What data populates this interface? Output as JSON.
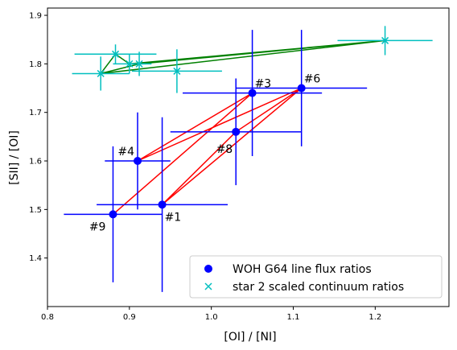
{
  "chart_data": {
    "type": "scatter",
    "title": "",
    "xlabel": "[OI] / [NI]",
    "ylabel": "[SII] / [OI]",
    "xlim": [
      0.8,
      1.29
    ],
    "ylim": [
      1.3,
      1.915
    ],
    "xticks": [
      0.8,
      0.9,
      1.0,
      1.1,
      1.2
    ],
    "xtick_labels": [
      "0.8",
      "0.9",
      "1.0",
      "1.1",
      "1.2"
    ],
    "yticks": [
      1.4,
      1.5,
      1.6,
      1.7,
      1.8,
      1.9
    ],
    "ytick_labels": [
      "1.4",
      "1.5",
      "1.6",
      "1.7",
      "1.8",
      "1.9"
    ],
    "grid": false,
    "legend": {
      "placement": "lower right"
    },
    "series": [
      {
        "name": "WOH G64 line flux ratios",
        "marker": "filled-circle",
        "color": "#0000ff",
        "points": [
          {
            "label": "#1",
            "x": 0.94,
            "y": 1.51,
            "xerr": 0.08,
            "yerr": 0.18
          },
          {
            "label": "#3",
            "x": 1.05,
            "y": 1.74,
            "xerr": 0.085,
            "yerr": 0.13
          },
          {
            "label": "#4",
            "x": 0.91,
            "y": 1.6,
            "xerr": 0.04,
            "yerr": 0.1
          },
          {
            "label": "#6",
            "x": 1.11,
            "y": 1.75,
            "xerr": 0.08,
            "yerr": 0.12
          },
          {
            "label": "#8",
            "x": 1.03,
            "y": 1.66,
            "xerr": 0.08,
            "yerr": 0.11
          },
          {
            "label": "#9",
            "x": 0.88,
            "y": 1.49,
            "xerr": 0.06,
            "yerr": 0.14
          }
        ]
      },
      {
        "name": "star 2 scaled continuum ratios",
        "marker": "x",
        "color": "#00bfbf",
        "points": [
          {
            "x": 0.865,
            "y": 1.78,
            "xerr": 0.035,
            "yerr": 0.035
          },
          {
            "x": 0.883,
            "y": 1.82,
            "xerr": 0.05,
            "yerr": 0.02
          },
          {
            "x": 0.9,
            "y": 1.8,
            "xerr": 0.02,
            "yerr": 0.02
          },
          {
            "x": 0.912,
            "y": 1.8,
            "xerr": 0.015,
            "yerr": 0.025
          },
          {
            "x": 0.958,
            "y": 1.785,
            "xerr": 0.055,
            "yerr": 0.045
          },
          {
            "x": 1.212,
            "y": 1.848,
            "xerr": 0.058,
            "yerr": 0.03
          }
        ]
      }
    ],
    "connections": [
      {
        "color": "#ff0000",
        "path": [
          [
            0.88,
            1.49
          ],
          [
            1.05,
            1.74
          ],
          [
            0.91,
            1.6
          ],
          [
            1.11,
            1.75
          ],
          [
            0.94,
            1.51
          ],
          [
            1.03,
            1.66
          ],
          [
            1.11,
            1.75
          ],
          [
            0.91,
            1.6
          ]
        ]
      },
      {
        "color": "#008000",
        "path": [
          [
            0.865,
            1.78
          ],
          [
            0.883,
            1.82
          ],
          [
            0.9,
            1.8
          ],
          [
            1.212,
            1.848
          ],
          [
            0.912,
            1.8
          ],
          [
            0.865,
            1.78
          ],
          [
            1.212,
            1.848
          ]
        ]
      }
    ]
  }
}
